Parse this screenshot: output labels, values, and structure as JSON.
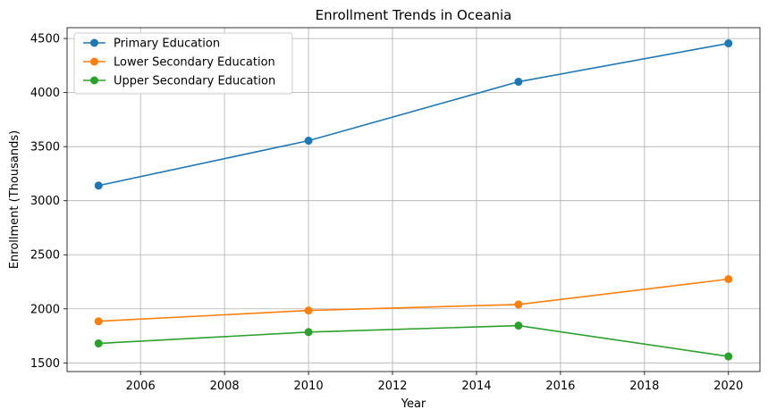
{
  "chart_data": {
    "type": "line",
    "title": "Enrollment Trends in Oceania",
    "xlabel": "Year",
    "ylabel": "Enrollment (Thousands)",
    "x": [
      2005,
      2010,
      2015,
      2020
    ],
    "xlim": [
      2004.25,
      2020.75
    ],
    "ylim": [
      1420,
      4600
    ],
    "xticks": [
      2006,
      2008,
      2010,
      2012,
      2014,
      2016,
      2018,
      2020
    ],
    "yticks": [
      1500,
      2000,
      2500,
      3000,
      3500,
      4000,
      4500
    ],
    "grid": true,
    "legend_position": "top-left",
    "series": [
      {
        "name": "Primary Education",
        "color": "#1f77b4",
        "values": [
          3140,
          3555,
          4100,
          4455
        ]
      },
      {
        "name": "Lower Secondary Education",
        "color": "#ff7f0e",
        "values": [
          1885,
          1985,
          2040,
          2275
        ]
      },
      {
        "name": "Upper Secondary Education",
        "color": "#2ca02c",
        "values": [
          1680,
          1785,
          1845,
          1560
        ]
      }
    ]
  }
}
